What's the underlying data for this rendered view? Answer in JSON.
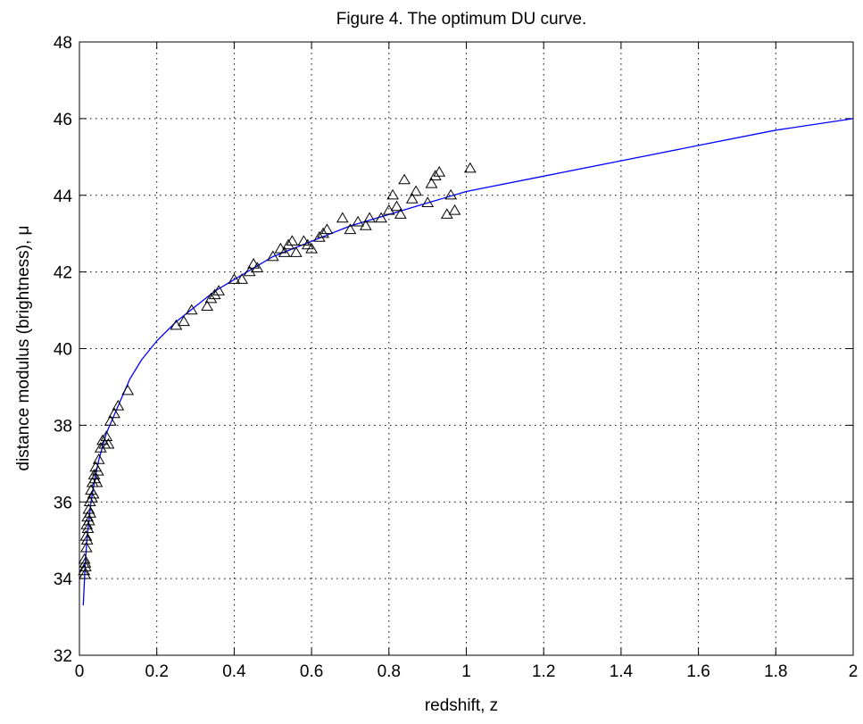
{
  "chart_data": {
    "type": "scatter",
    "title": "Figure 4.  The optimum DU curve.",
    "xlabel": "redshift, z",
    "ylabel": "distance modulus (brightness), μ",
    "xlim": [
      0,
      2
    ],
    "ylim": [
      32,
      48
    ],
    "xticks": [
      0,
      0.2,
      0.4,
      0.6,
      0.8,
      1,
      1.2,
      1.4,
      1.6,
      1.8,
      2
    ],
    "xtick_labels": [
      "0",
      "0.2",
      "0.4",
      "0.6",
      "0.8",
      "1",
      "1.2",
      "1.4",
      "1.6",
      "1.8",
      "2"
    ],
    "yticks": [
      32,
      34,
      36,
      38,
      40,
      42,
      44,
      46,
      48
    ],
    "ytick_labels": [
      "32",
      "34",
      "36",
      "38",
      "40",
      "42",
      "44",
      "46",
      "48"
    ],
    "grid": true,
    "colors": {
      "curve": "#0000ff",
      "markers": "#000000",
      "grid": "#000000"
    },
    "marker": "triangle-open",
    "curve": {
      "x": [
        0.01,
        0.015,
        0.02,
        0.03,
        0.04,
        0.05,
        0.07,
        0.1,
        0.13,
        0.16,
        0.2,
        0.25,
        0.3,
        0.35,
        0.4,
        0.45,
        0.5,
        0.6,
        0.7,
        0.8,
        0.9,
        1.0,
        1.2,
        1.4,
        1.6,
        1.8,
        2.0
      ],
      "y": [
        33.3,
        34.4,
        35.1,
        36.0,
        36.6,
        37.1,
        37.8,
        38.5,
        39.2,
        39.7,
        40.2,
        40.7,
        41.1,
        41.5,
        41.8,
        42.1,
        42.4,
        42.8,
        43.2,
        43.5,
        43.8,
        44.1,
        44.5,
        44.9,
        45.3,
        45.7,
        46.0
      ]
    },
    "points": {
      "x": [
        0.012,
        0.013,
        0.014,
        0.015,
        0.016,
        0.017,
        0.018,
        0.019,
        0.02,
        0.021,
        0.022,
        0.024,
        0.025,
        0.027,
        0.028,
        0.03,
        0.032,
        0.034,
        0.036,
        0.038,
        0.04,
        0.042,
        0.045,
        0.048,
        0.05,
        0.055,
        0.06,
        0.065,
        0.07,
        0.075,
        0.08,
        0.09,
        0.1,
        0.125,
        0.25,
        0.27,
        0.29,
        0.33,
        0.34,
        0.35,
        0.36,
        0.4,
        0.42,
        0.44,
        0.45,
        0.46,
        0.5,
        0.52,
        0.53,
        0.54,
        0.55,
        0.56,
        0.58,
        0.59,
        0.6,
        0.62,
        0.63,
        0.64,
        0.68,
        0.7,
        0.72,
        0.74,
        0.75,
        0.78,
        0.8,
        0.81,
        0.82,
        0.83,
        0.84,
        0.86,
        0.87,
        0.9,
        0.91,
        0.92,
        0.93,
        0.95,
        0.96,
        0.97,
        1.01
      ],
      "y": [
        34.2,
        34.5,
        34.1,
        34.4,
        34.3,
        35.1,
        34.8,
        35.4,
        35.0,
        35.6,
        35.3,
        35.8,
        35.5,
        36.0,
        35.7,
        36.3,
        36.1,
        36.5,
        36.2,
        36.7,
        36.6,
        36.9,
        36.5,
        36.8,
        37.1,
        37.4,
        37.6,
        37.5,
        37.7,
        37.5,
        38.1,
        38.3,
        38.5,
        38.9,
        40.6,
        40.7,
        41.0,
        41.1,
        41.3,
        41.4,
        41.5,
        41.8,
        41.8,
        42.0,
        42.2,
        42.1,
        42.4,
        42.6,
        42.5,
        42.7,
        42.8,
        42.5,
        42.8,
        42.7,
        42.6,
        42.9,
        43.0,
        43.1,
        43.4,
        43.1,
        43.3,
        43.2,
        43.4,
        43.4,
        43.6,
        44.0,
        43.7,
        43.5,
        44.4,
        43.9,
        44.1,
        43.8,
        44.3,
        44.5,
        44.6,
        43.5,
        44.0,
        43.6,
        44.7
      ]
    }
  }
}
